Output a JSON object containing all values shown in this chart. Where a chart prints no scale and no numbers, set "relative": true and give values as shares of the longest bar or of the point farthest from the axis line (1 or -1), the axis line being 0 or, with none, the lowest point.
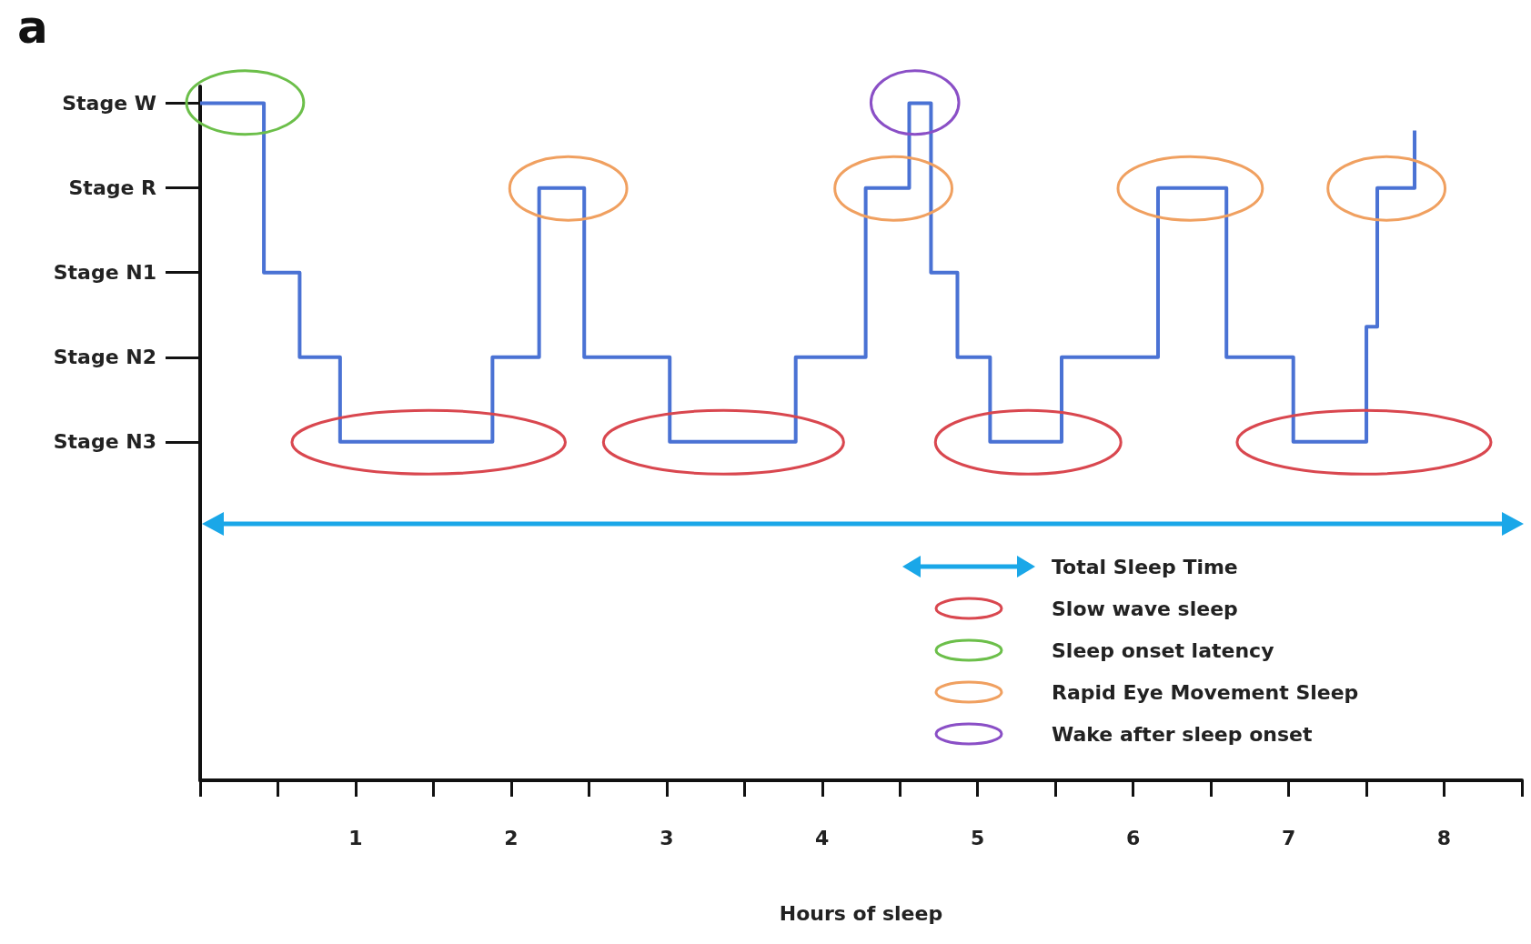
{
  "chart_data": {
    "type": "step",
    "title": "a",
    "xlabel": "Hours of sleep",
    "relative": true,
    "x": [
      0,
      0.41,
      0.64,
      0.9,
      1.88,
      2.18,
      2.47,
      3.02,
      3.83,
      4.28,
      4.56,
      4.7,
      4.87,
      5.08,
      5.54,
      6.16,
      6.6,
      7.03,
      7.5,
      7.57,
      7.81
    ],
    "y_categories": [
      "Stage W",
      "Stage R",
      "Stage N1",
      "Stage N2",
      "Stage N3"
    ],
    "series": [
      {
        "color": "#4a72d4",
        "values": [
          1,
          0.75,
          0.625,
          0.5,
          0.625,
          0.875,
          0.625,
          0.5,
          0.625,
          0.875,
          1,
          0.75,
          0.625,
          0.5,
          0.625,
          0.875,
          0.625,
          0.5,
          0.67,
          0.875,
          0.96
        ]
      }
    ],
    "xlim": [
      0,
      8.5
    ],
    "xticks": [
      1,
      2,
      3,
      4,
      5,
      6,
      7,
      8
    ],
    "annotations": [
      "Total Sleep Time",
      "Slow wave sleep",
      "Sleep onset latency",
      "Rapid Eye Movement Sleep",
      "Wake after sleep onset"
    ],
    "grid": false
  }
}
